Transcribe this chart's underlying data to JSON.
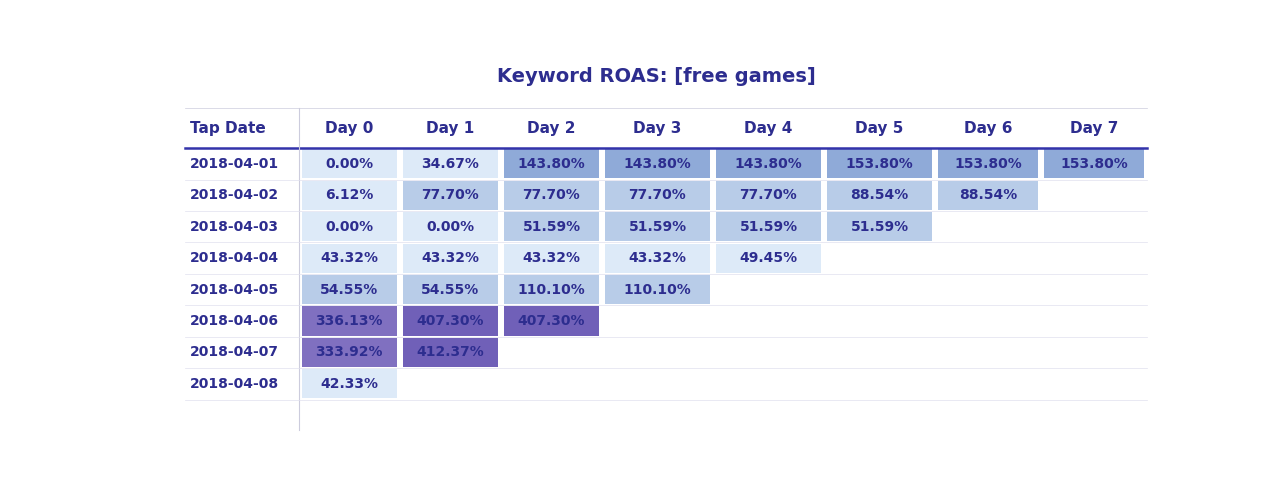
{
  "title": "Keyword ROAS: [free games]",
  "title_color": "#2d2d8f",
  "col_headers": [
    "Tap Date",
    "Day 0",
    "Day 1",
    "Day 2",
    "Day 3",
    "Day 4",
    "Day 5",
    "Day 6",
    "Day 7"
  ],
  "rows": [
    {
      "date": "2018-04-01",
      "values": [
        "0.00%",
        "34.67%",
        "143.80%",
        "143.80%",
        "143.80%",
        "153.80%",
        "153.80%",
        "153.80%"
      ]
    },
    {
      "date": "2018-04-02",
      "values": [
        "6.12%",
        "77.70%",
        "77.70%",
        "77.70%",
        "77.70%",
        "88.54%",
        "88.54%",
        null
      ]
    },
    {
      "date": "2018-04-03",
      "values": [
        "0.00%",
        "0.00%",
        "51.59%",
        "51.59%",
        "51.59%",
        "51.59%",
        null,
        null
      ]
    },
    {
      "date": "2018-04-04",
      "values": [
        "43.32%",
        "43.32%",
        "43.32%",
        "43.32%",
        "49.45%",
        null,
        null,
        null
      ]
    },
    {
      "date": "2018-04-05",
      "values": [
        "54.55%",
        "54.55%",
        "110.10%",
        "110.10%",
        null,
        null,
        null,
        null
      ]
    },
    {
      "date": "2018-04-06",
      "values": [
        "336.13%",
        "407.30%",
        "407.30%",
        null,
        null,
        null,
        null,
        null
      ]
    },
    {
      "date": "2018-04-07",
      "values": [
        "333.92%",
        "412.37%",
        null,
        null,
        null,
        null,
        null,
        null
      ]
    },
    {
      "date": "2018-04-08",
      "values": [
        "42.33%",
        null,
        null,
        null,
        null,
        null,
        null,
        null
      ]
    }
  ],
  "bg_color": "#ffffff",
  "header_text_color": "#2d2d8f",
  "cell_text_color": "#2d2d8f",
  "date_text_color": "#2d2d8f",
  "color_light_blue": "#ddeaf8",
  "color_mid_blue": "#b8cce8",
  "color_med_blue": "#8faad8",
  "color_light_purple": "#9b8fd4",
  "color_mid_purple": "#8070c0",
  "color_deep_purple": "#7060b8"
}
